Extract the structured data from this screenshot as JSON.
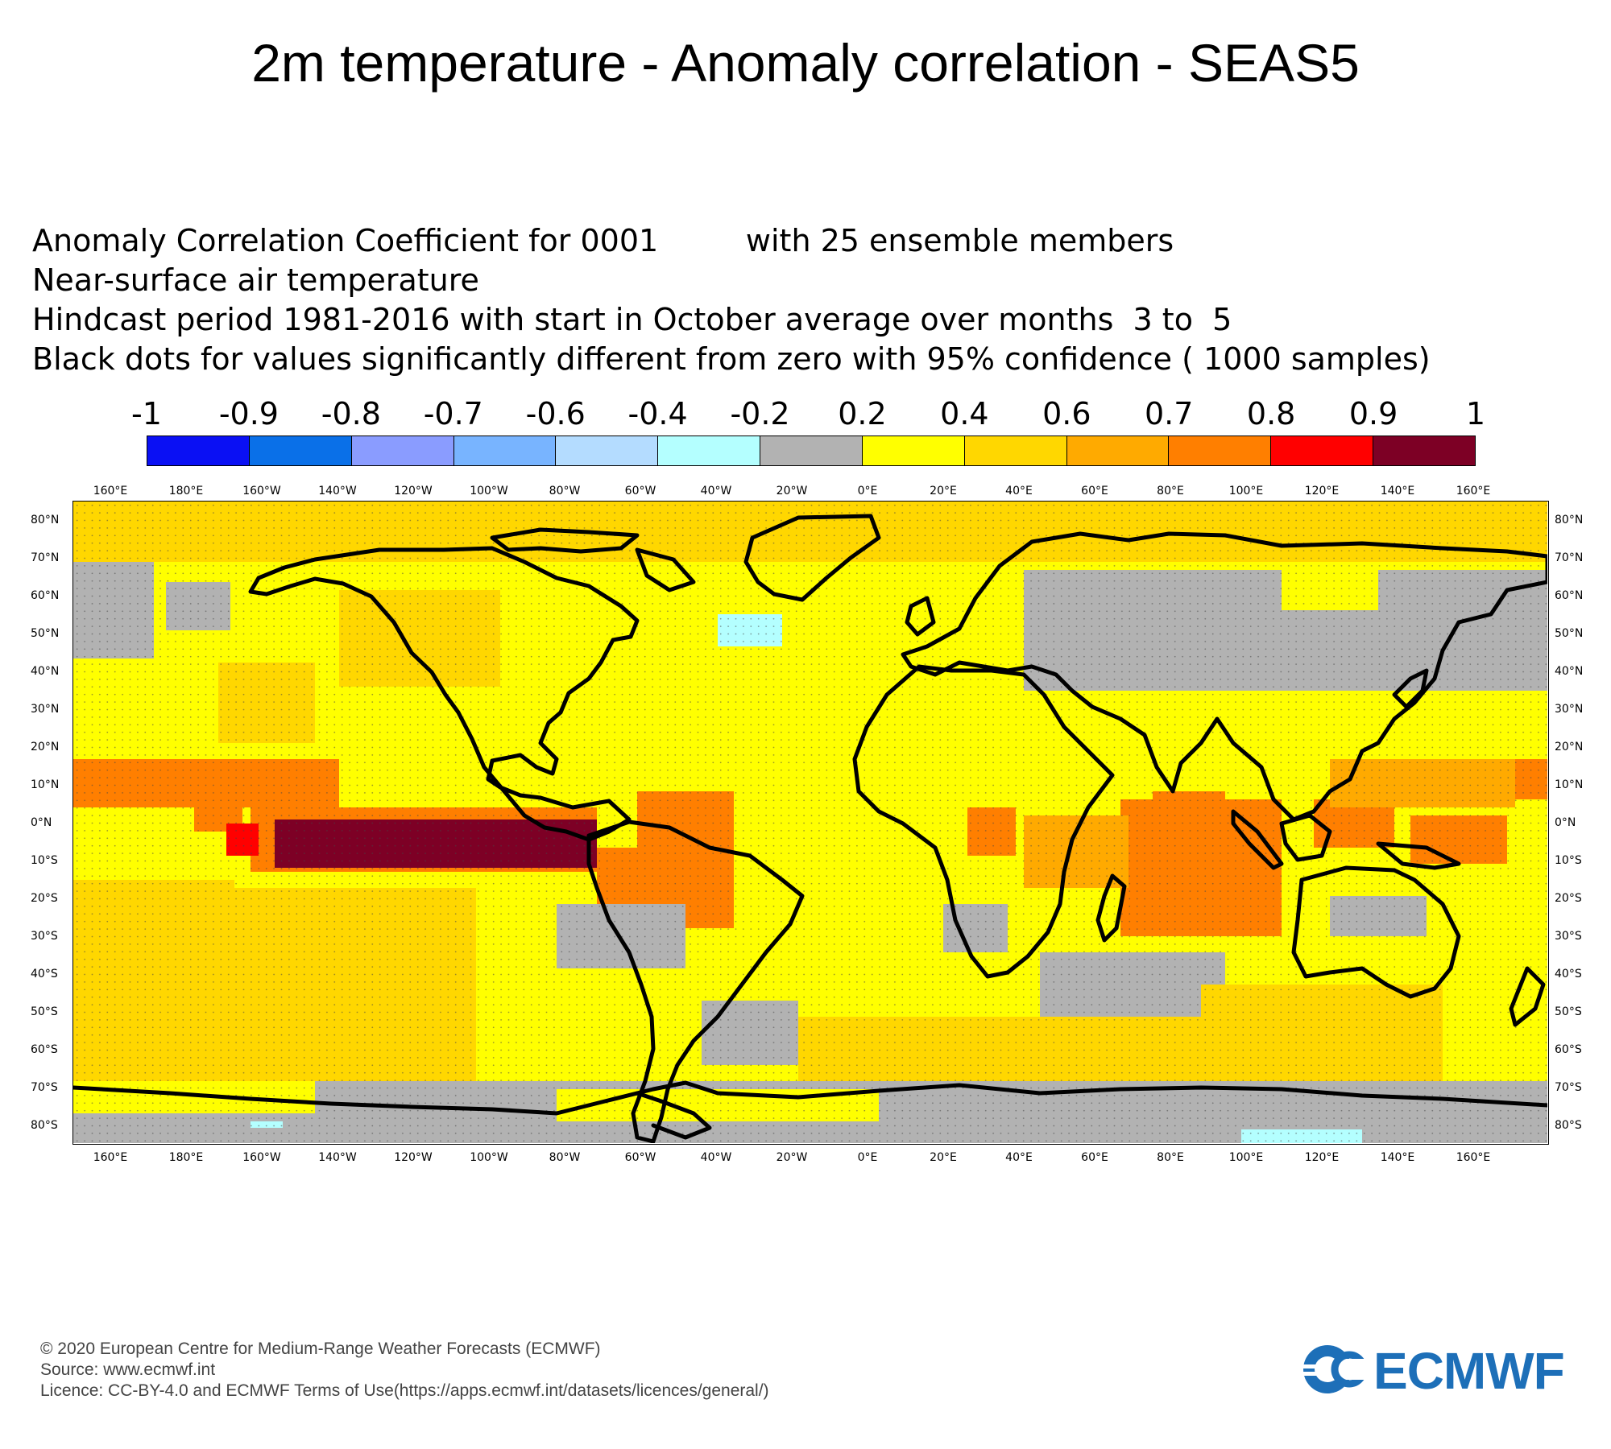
{
  "title": "2m temperature - Anomaly correlation - SEAS5",
  "info_lines": [
    "Anomaly Correlation Coefficient for 0001         with 25 ensemble members",
    "Near-surface air temperature",
    "Hindcast period 1981-2016 with start in October average over months  3 to  5",
    "Black dots for values significantly different from zero with 95% confidence ( 1000 samples)"
  ],
  "colorbar": {
    "labels": [
      "-1",
      "-0.9",
      "-0.8",
      "-0.7",
      "-0.6",
      "-0.4",
      "-0.2",
      "0.2",
      "0.4",
      "0.6",
      "0.7",
      "0.8",
      "0.9",
      "1"
    ],
    "colors": [
      "#0a10f4",
      "#0a70e8",
      "#8a9cff",
      "#78b4ff",
      "#b4dcff",
      "#b4ffff",
      "#b2b2b2",
      "#ffff00",
      "#ffd700",
      "#ffaa00",
      "#ff7f00",
      "#ff0000",
      "#7d0025"
    ]
  },
  "map": {
    "lon_labels": [
      "160°E",
      "180°E",
      "160°W",
      "140°W",
      "120°W",
      "100°W",
      "80°W",
      "60°W",
      "40°W",
      "20°W",
      "0°E",
      "20°E",
      "40°E",
      "60°E",
      "80°E",
      "100°E",
      "120°E",
      "140°E",
      "160°E"
    ],
    "lat_labels": [
      "80°N",
      "70°N",
      "60°N",
      "50°N",
      "40°N",
      "30°N",
      "20°N",
      "10°N",
      "0°N",
      "10°S",
      "20°S",
      "30°S",
      "40°S",
      "50°S",
      "60°S",
      "70°S",
      "80°S"
    ],
    "lon_range": [
      150,
      540
    ],
    "lat_range": [
      -85,
      85
    ],
    "coastline_color": "#000000"
  },
  "footer": {
    "lines": [
      "© 2020 European Centre for Medium-Range Weather Forecasts (ECMWF)",
      "Source: www.ecmwf.int",
      "Licence: CC-BY-4.0 and ECMWF Terms of Use(https://apps.ecmwf.int/datasets/licences/general/)"
    ],
    "logo_text": "ECMWF",
    "logo_color": "#1d6fb8"
  }
}
